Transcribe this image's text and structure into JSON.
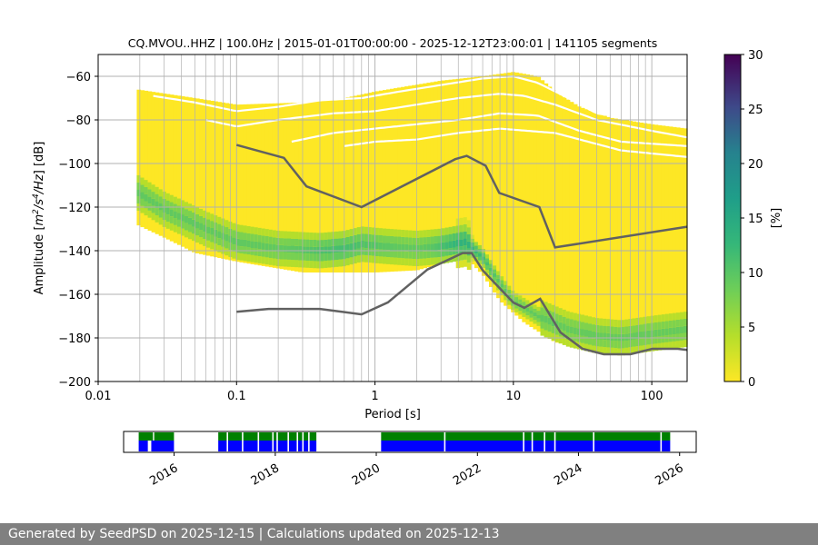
{
  "chart_data": [
    {
      "type": "heatmap",
      "title": "CQ.MVOU..HHZ | 100.0Hz | 2015-01-01T00:00:00 - 2025-12-12T23:00:01 | 141105 segments",
      "xlabel": "Period [s]",
      "ylabel_parts": [
        "Amplitude [",
        "m",
        "2",
        "/s",
        "4",
        "/Hz",
        "] [dB]"
      ],
      "x_scale": "log",
      "xlim": [
        0.01,
        180
      ],
      "ylim": [
        -200,
        -50
      ],
      "x_ticks": [
        {
          "value": 0.01,
          "label": "0.01"
        },
        {
          "value": 0.1,
          "label": "0.1"
        },
        {
          "value": 1,
          "label": "1"
        },
        {
          "value": 10,
          "label": "10"
        },
        {
          "value": 100,
          "label": "100"
        }
      ],
      "y_ticks": [
        -60,
        -80,
        -100,
        -120,
        -140,
        -160,
        -180,
        -200
      ],
      "grid": true,
      "colorbar": {
        "label": "[%]",
        "min": 0,
        "max": 30,
        "ticks": [
          0,
          5,
          10,
          15,
          20,
          25,
          30
        ],
        "colormap": "viridis_r"
      },
      "density": {
        "period_start": 0.019,
        "period_end": 180,
        "mode_curve": [
          [
            0.019,
            -113
          ],
          [
            0.03,
            -121
          ],
          [
            0.06,
            -130
          ],
          [
            0.1,
            -136
          ],
          [
            0.2,
            -139
          ],
          [
            0.4,
            -140
          ],
          [
            0.6,
            -139
          ],
          [
            0.8,
            -137
          ],
          [
            1.2,
            -138
          ],
          [
            2,
            -139
          ],
          [
            3,
            -138
          ],
          [
            4.5,
            -136
          ],
          [
            6,
            -143
          ],
          [
            8,
            -155
          ],
          [
            10,
            -163
          ],
          [
            15,
            -170
          ],
          [
            25,
            -176
          ],
          [
            40,
            -179
          ],
          [
            60,
            -180
          ],
          [
            100,
            -178
          ],
          [
            180,
            -176
          ]
        ],
        "upper_edge": [
          [
            0.019,
            -66
          ],
          [
            0.05,
            -70
          ],
          [
            0.1,
            -73
          ],
          [
            0.3,
            -72
          ],
          [
            0.6,
            -70
          ],
          [
            1,
            -67
          ],
          [
            3,
            -62
          ],
          [
            6,
            -60
          ],
          [
            10,
            -58
          ],
          [
            15,
            -60
          ],
          [
            20,
            -67
          ],
          [
            30,
            -74
          ],
          [
            50,
            -79
          ],
          [
            100,
            -82
          ],
          [
            180,
            -84
          ]
        ],
        "lower_edge": [
          [
            0.019,
            -128
          ],
          [
            0.03,
            -134
          ],
          [
            0.05,
            -141
          ],
          [
            0.1,
            -145
          ],
          [
            0.3,
            -150
          ],
          [
            0.6,
            -150
          ],
          [
            1,
            -150
          ],
          [
            2,
            -149
          ],
          [
            3,
            -146
          ],
          [
            4.5,
            -143
          ],
          [
            6,
            -151
          ],
          [
            8,
            -163
          ],
          [
            12,
            -173
          ],
          [
            20,
            -182
          ],
          [
            40,
            -186
          ],
          [
            80,
            -186
          ],
          [
            180,
            -183
          ]
        ]
      },
      "nhnm": {
        "period": [
          0.1,
          0.22,
          0.32,
          0.8,
          3.8,
          4.6,
          6.3,
          7.9,
          15.4,
          20,
          180
        ],
        "db": [
          -91.5,
          -97.4,
          -110.5,
          -120,
          -98,
          -96.5,
          -101,
          -113.5,
          -120,
          -138.5,
          -129
        ]
      },
      "nlnm": {
        "period": [
          0.1,
          0.17,
          0.4,
          0.8,
          1.24,
          2.4,
          4.3,
          5,
          6,
          10,
          12,
          15.6,
          21.9,
          31.6,
          45,
          70,
          101,
          154,
          180
        ],
        "db": [
          -168,
          -166.7,
          -166.7,
          -169.2,
          -163.7,
          -148.6,
          -141.1,
          -141.1,
          -149,
          -163.8,
          -166.2,
          -162.1,
          -177.5,
          -185,
          -187.5,
          -187.5,
          -185,
          -185,
          -185.5
        ]
      },
      "colors": {
        "reference_line": "#616161",
        "grid": "#b0b0b0",
        "masked_white_gaps": "#ffffff"
      }
    },
    {
      "type": "timeline",
      "x_ticks": [
        "2016",
        "2018",
        "2020",
        "2022",
        "2024",
        "2026"
      ],
      "range": [
        "2015-01-01",
        "2026-05-01"
      ],
      "colors": {
        "available": "#008000",
        "used": "#0000ff"
      },
      "available_segments": [
        [
          "2015-04-20",
          "2015-08-01"
        ],
        [
          "2015-08-10",
          "2015-12-31"
        ],
        [
          "2016-11-15",
          "2018-10-25"
        ],
        [
          "2020-02-05",
          "2025-10-25"
        ]
      ],
      "used_segments": [
        [
          "2015-04-20",
          "2015-06-25"
        ],
        [
          "2015-07-20",
          "2015-12-31"
        ],
        [
          "2016-11-15",
          "2018-10-25"
        ],
        [
          "2020-02-05",
          "2025-10-25"
        ]
      ],
      "gap_marks": [
        "2017-01-20",
        "2017-05-10",
        "2017-09-01",
        "2017-12-15",
        "2018-01-15",
        "2018-04-05",
        "2018-06-10",
        "2018-07-20",
        "2018-09-01",
        "2021-05-10",
        "2022-12-01",
        "2023-02-01",
        "2023-05-01",
        "2023-07-15",
        "2024-04-20",
        "2025-08-20"
      ]
    }
  ],
  "colors": {
    "footer_bg": "#808080",
    "footer_text": "#ffffff",
    "nodata_white": "#ffffff"
  },
  "footer": {
    "text": "Generated by SeedPSD on 2025-12-15 | Calculations updated on 2025-12-13"
  }
}
